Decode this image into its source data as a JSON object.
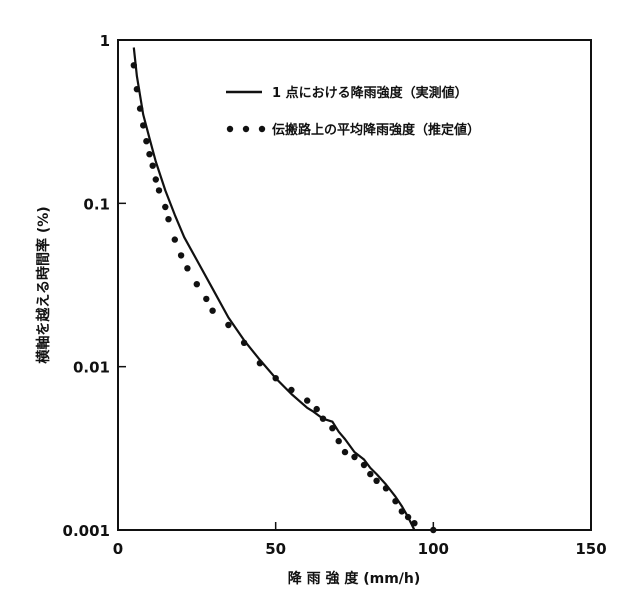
{
  "chart_data": {
    "type": "line",
    "xlabel": "降 雨 強 度 (mm/h)",
    "ylabel": "横軸を越える時間率 (%)",
    "xlim": [
      0,
      150
    ],
    "ylim": [
      0.001,
      1
    ],
    "y_scale": "log",
    "x_ticks": [
      "0",
      "50",
      "100",
      "150"
    ],
    "y_ticks": [
      "0.001",
      "0.01",
      "0.1",
      "1"
    ],
    "grid": false,
    "legend_position": "top-right",
    "series": [
      {
        "name": "1 点における降雨強度（実測値）",
        "style": "solid",
        "color": "#111111",
        "x": [
          5,
          6,
          8,
          10,
          12,
          15,
          18,
          21,
          25,
          30,
          35,
          40,
          45,
          50,
          55,
          60,
          62,
          65,
          68,
          70,
          72,
          75,
          78,
          80,
          82,
          85,
          88,
          90,
          92,
          94
        ],
        "y": [
          0.9,
          0.6,
          0.35,
          0.25,
          0.18,
          0.12,
          0.085,
          0.062,
          0.045,
          0.03,
          0.02,
          0.0145,
          0.011,
          0.0085,
          0.0068,
          0.0056,
          0.0053,
          0.0048,
          0.0046,
          0.004,
          0.0036,
          0.003,
          0.0027,
          0.0024,
          0.0022,
          0.0019,
          0.0016,
          0.0014,
          0.0012,
          0.001
        ]
      },
      {
        "name": "伝搬路上の平均降雨強度（推定値）",
        "style": "dotted",
        "color": "#111111",
        "x": [
          5,
          6,
          7,
          8,
          9,
          10,
          11,
          12,
          13,
          15,
          16,
          18,
          20,
          22,
          25,
          28,
          30,
          35,
          40,
          45,
          50,
          55,
          60,
          63,
          65,
          68,
          70,
          72,
          75,
          78,
          80,
          82,
          85,
          88,
          90,
          92,
          94,
          100
        ],
        "y": [
          0.7,
          0.5,
          0.38,
          0.3,
          0.24,
          0.2,
          0.17,
          0.14,
          0.12,
          0.095,
          0.08,
          0.06,
          0.048,
          0.04,
          0.032,
          0.026,
          0.022,
          0.018,
          0.014,
          0.0105,
          0.0085,
          0.0072,
          0.0062,
          0.0055,
          0.0048,
          0.0042,
          0.0035,
          0.003,
          0.0028,
          0.0025,
          0.0022,
          0.002,
          0.0018,
          0.0015,
          0.0013,
          0.0012,
          0.0011,
          0.001
        ]
      }
    ]
  }
}
